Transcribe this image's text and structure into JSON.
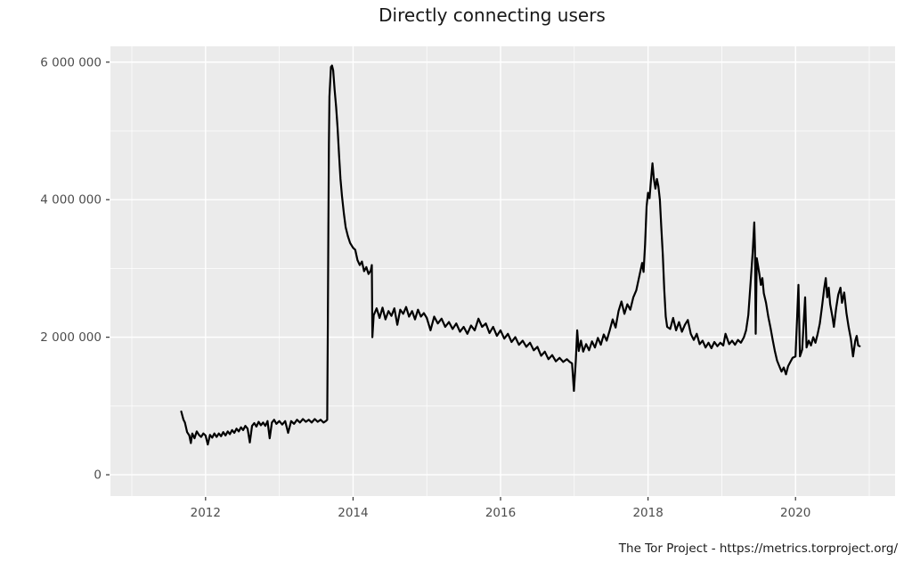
{
  "title": "Directly connecting users",
  "caption": "The Tor Project - https://metrics.torproject.org/",
  "chart_data": {
    "type": "line",
    "title": "Directly connecting users",
    "xlabel": "",
    "ylabel": "",
    "caption": "The Tor Project - https://metrics.torproject.org/",
    "legend": "none",
    "grid": "on",
    "style": {
      "panel_background": "#EBEBEB",
      "grid_color": "#FFFFFF",
      "line_color": "#000000",
      "line_width": 2.2,
      "tick_label_color": "#4D4D4D",
      "tick_mark_color": "#333333",
      "title_color": "#181818",
      "caption_color": "#1A1A1A"
    },
    "x_axis": {
      "range_years": [
        2010.71,
        2021.35
      ],
      "major_ticks": [
        {
          "value": 2012,
          "label": "2012"
        },
        {
          "value": 2014,
          "label": "2014"
        },
        {
          "value": 2016,
          "label": "2016"
        },
        {
          "value": 2018,
          "label": "2018"
        },
        {
          "value": 2020,
          "label": "2020"
        }
      ],
      "minor_ticks": [
        2011,
        2013,
        2015,
        2017,
        2019,
        2021
      ]
    },
    "y_axis": {
      "range_users": [
        -310000,
        6230000
      ],
      "major_ticks": [
        {
          "value": 0,
          "label": "0"
        },
        {
          "value": 2000000,
          "label": "2 000 000"
        },
        {
          "value": 4000000,
          "label": "4 000 000"
        },
        {
          "value": 6000000,
          "label": "6 000 000"
        }
      ],
      "minor_ticks": [
        1000000,
        3000000,
        5000000
      ]
    },
    "series": [
      {
        "name": "directly-connecting-users",
        "color": "#000000",
        "points_year_users_millions": [
          [
            2011.67,
            0.92
          ],
          [
            2011.7,
            0.8
          ],
          [
            2011.72,
            0.76
          ],
          [
            2011.75,
            0.62
          ],
          [
            2011.78,
            0.57
          ],
          [
            2011.8,
            0.46
          ],
          [
            2011.82,
            0.6
          ],
          [
            2011.85,
            0.53
          ],
          [
            2011.88,
            0.63
          ],
          [
            2011.91,
            0.58
          ],
          [
            2011.94,
            0.55
          ],
          [
            2011.97,
            0.6
          ],
          [
            2012.0,
            0.57
          ],
          [
            2012.03,
            0.44
          ],
          [
            2012.06,
            0.58
          ],
          [
            2012.09,
            0.54
          ],
          [
            2012.12,
            0.6
          ],
          [
            2012.15,
            0.55
          ],
          [
            2012.18,
            0.6
          ],
          [
            2012.21,
            0.56
          ],
          [
            2012.24,
            0.62
          ],
          [
            2012.27,
            0.57
          ],
          [
            2012.3,
            0.63
          ],
          [
            2012.33,
            0.59
          ],
          [
            2012.36,
            0.65
          ],
          [
            2012.39,
            0.61
          ],
          [
            2012.42,
            0.67
          ],
          [
            2012.45,
            0.63
          ],
          [
            2012.48,
            0.69
          ],
          [
            2012.51,
            0.65
          ],
          [
            2012.54,
            0.71
          ],
          [
            2012.57,
            0.67
          ],
          [
            2012.6,
            0.47
          ],
          [
            2012.63,
            0.71
          ],
          [
            2012.66,
            0.75
          ],
          [
            2012.69,
            0.7
          ],
          [
            2012.72,
            0.77
          ],
          [
            2012.75,
            0.72
          ],
          [
            2012.78,
            0.76
          ],
          [
            2012.81,
            0.71
          ],
          [
            2012.84,
            0.78
          ],
          [
            2012.87,
            0.53
          ],
          [
            2012.9,
            0.76
          ],
          [
            2012.93,
            0.8
          ],
          [
            2012.96,
            0.74
          ],
          [
            2013.0,
            0.78
          ],
          [
            2013.04,
            0.73
          ],
          [
            2013.08,
            0.78
          ],
          [
            2013.12,
            0.61
          ],
          [
            2013.16,
            0.78
          ],
          [
            2013.2,
            0.74
          ],
          [
            2013.24,
            0.8
          ],
          [
            2013.28,
            0.76
          ],
          [
            2013.32,
            0.81
          ],
          [
            2013.36,
            0.77
          ],
          [
            2013.4,
            0.8
          ],
          [
            2013.44,
            0.76
          ],
          [
            2013.48,
            0.81
          ],
          [
            2013.52,
            0.77
          ],
          [
            2013.56,
            0.8
          ],
          [
            2013.6,
            0.76
          ],
          [
            2013.63,
            0.78
          ],
          [
            2013.65,
            0.8
          ],
          [
            2013.658,
            2.2
          ],
          [
            2013.665,
            3.6
          ],
          [
            2013.672,
            4.8
          ],
          [
            2013.68,
            5.5
          ],
          [
            2013.7,
            5.93
          ],
          [
            2013.715,
            5.95
          ],
          [
            2013.73,
            5.88
          ],
          [
            2013.75,
            5.6
          ],
          [
            2013.77,
            5.35
          ],
          [
            2013.79,
            5.05
          ],
          [
            2013.81,
            4.65
          ],
          [
            2013.83,
            4.3
          ],
          [
            2013.85,
            4.05
          ],
          [
            2013.875,
            3.8
          ],
          [
            2013.9,
            3.6
          ],
          [
            2013.93,
            3.47
          ],
          [
            2013.96,
            3.37
          ],
          [
            2014.0,
            3.3
          ],
          [
            2014.03,
            3.27
          ],
          [
            2014.06,
            3.12
          ],
          [
            2014.09,
            3.05
          ],
          [
            2014.12,
            3.1
          ],
          [
            2014.15,
            2.96
          ],
          [
            2014.18,
            3.02
          ],
          [
            2014.21,
            2.92
          ],
          [
            2014.24,
            2.97
          ],
          [
            2014.255,
            3.05
          ],
          [
            2014.262,
            2.0
          ],
          [
            2014.28,
            2.32
          ],
          [
            2014.32,
            2.42
          ],
          [
            2014.36,
            2.28
          ],
          [
            2014.4,
            2.43
          ],
          [
            2014.44,
            2.26
          ],
          [
            2014.48,
            2.38
          ],
          [
            2014.52,
            2.31
          ],
          [
            2014.56,
            2.42
          ],
          [
            2014.6,
            2.18
          ],
          [
            2014.64,
            2.4
          ],
          [
            2014.68,
            2.34
          ],
          [
            2014.72,
            2.44
          ],
          [
            2014.76,
            2.3
          ],
          [
            2014.8,
            2.38
          ],
          [
            2014.84,
            2.26
          ],
          [
            2014.88,
            2.4
          ],
          [
            2014.92,
            2.3
          ],
          [
            2014.96,
            2.35
          ],
          [
            2015.0,
            2.28
          ],
          [
            2015.05,
            2.1
          ],
          [
            2015.1,
            2.3
          ],
          [
            2015.15,
            2.2
          ],
          [
            2015.2,
            2.27
          ],
          [
            2015.25,
            2.15
          ],
          [
            2015.3,
            2.22
          ],
          [
            2015.35,
            2.12
          ],
          [
            2015.4,
            2.2
          ],
          [
            2015.45,
            2.08
          ],
          [
            2015.5,
            2.15
          ],
          [
            2015.55,
            2.05
          ],
          [
            2015.6,
            2.17
          ],
          [
            2015.65,
            2.1
          ],
          [
            2015.7,
            2.27
          ],
          [
            2015.75,
            2.15
          ],
          [
            2015.8,
            2.2
          ],
          [
            2015.85,
            2.06
          ],
          [
            2015.9,
            2.15
          ],
          [
            2015.95,
            2.02
          ],
          [
            2016.0,
            2.1
          ],
          [
            2016.05,
            1.98
          ],
          [
            2016.1,
            2.05
          ],
          [
            2016.15,
            1.93
          ],
          [
            2016.2,
            2.0
          ],
          [
            2016.25,
            1.89
          ],
          [
            2016.3,
            1.95
          ],
          [
            2016.35,
            1.86
          ],
          [
            2016.4,
            1.92
          ],
          [
            2016.45,
            1.81
          ],
          [
            2016.5,
            1.86
          ],
          [
            2016.55,
            1.73
          ],
          [
            2016.6,
            1.79
          ],
          [
            2016.65,
            1.68
          ],
          [
            2016.7,
            1.74
          ],
          [
            2016.75,
            1.65
          ],
          [
            2016.8,
            1.7
          ],
          [
            2016.85,
            1.64
          ],
          [
            2016.9,
            1.68
          ],
          [
            2016.94,
            1.64
          ],
          [
            2016.97,
            1.62
          ],
          [
            2016.995,
            1.22
          ],
          [
            2017.02,
            1.66
          ],
          [
            2017.04,
            2.1
          ],
          [
            2017.06,
            1.8
          ],
          [
            2017.09,
            1.95
          ],
          [
            2017.12,
            1.79
          ],
          [
            2017.16,
            1.9
          ],
          [
            2017.2,
            1.81
          ],
          [
            2017.24,
            1.94
          ],
          [
            2017.28,
            1.85
          ],
          [
            2017.32,
            1.99
          ],
          [
            2017.36,
            1.89
          ],
          [
            2017.4,
            2.04
          ],
          [
            2017.44,
            1.95
          ],
          [
            2017.48,
            2.1
          ],
          [
            2017.52,
            2.26
          ],
          [
            2017.56,
            2.14
          ],
          [
            2017.6,
            2.38
          ],
          [
            2017.64,
            2.52
          ],
          [
            2017.68,
            2.34
          ],
          [
            2017.72,
            2.48
          ],
          [
            2017.76,
            2.4
          ],
          [
            2017.8,
            2.58
          ],
          [
            2017.84,
            2.68
          ],
          [
            2017.88,
            2.88
          ],
          [
            2017.92,
            3.08
          ],
          [
            2017.94,
            2.95
          ],
          [
            2017.96,
            3.35
          ],
          [
            2017.98,
            3.9
          ],
          [
            2018.0,
            4.1
          ],
          [
            2018.02,
            4.02
          ],
          [
            2018.04,
            4.28
          ],
          [
            2018.06,
            4.53
          ],
          [
            2018.08,
            4.3
          ],
          [
            2018.1,
            4.16
          ],
          [
            2018.12,
            4.3
          ],
          [
            2018.14,
            4.2
          ],
          [
            2018.16,
            4.0
          ],
          [
            2018.18,
            3.6
          ],
          [
            2018.2,
            3.2
          ],
          [
            2018.22,
            2.7
          ],
          [
            2018.24,
            2.3
          ],
          [
            2018.26,
            2.15
          ],
          [
            2018.3,
            2.12
          ],
          [
            2018.34,
            2.28
          ],
          [
            2018.38,
            2.1
          ],
          [
            2018.42,
            2.22
          ],
          [
            2018.46,
            2.08
          ],
          [
            2018.5,
            2.18
          ],
          [
            2018.54,
            2.25
          ],
          [
            2018.58,
            2.05
          ],
          [
            2018.62,
            1.96
          ],
          [
            2018.66,
            2.05
          ],
          [
            2018.7,
            1.9
          ],
          [
            2018.74,
            1.95
          ],
          [
            2018.78,
            1.85
          ],
          [
            2018.82,
            1.92
          ],
          [
            2018.86,
            1.84
          ],
          [
            2018.9,
            1.93
          ],
          [
            2018.94,
            1.87
          ],
          [
            2018.98,
            1.92
          ],
          [
            2019.02,
            1.88
          ],
          [
            2019.05,
            2.05
          ],
          [
            2019.1,
            1.9
          ],
          [
            2019.14,
            1.95
          ],
          [
            2019.18,
            1.89
          ],
          [
            2019.22,
            1.96
          ],
          [
            2019.26,
            1.92
          ],
          [
            2019.3,
            2.0
          ],
          [
            2019.33,
            2.1
          ],
          [
            2019.36,
            2.32
          ],
          [
            2019.39,
            2.78
          ],
          [
            2019.42,
            3.25
          ],
          [
            2019.44,
            3.67
          ],
          [
            2019.45,
            3.3
          ],
          [
            2019.46,
            2.05
          ],
          [
            2019.475,
            3.15
          ],
          [
            2019.49,
            3.05
          ],
          [
            2019.51,
            2.92
          ],
          [
            2019.53,
            2.76
          ],
          [
            2019.55,
            2.86
          ],
          [
            2019.57,
            2.64
          ],
          [
            2019.6,
            2.5
          ],
          [
            2019.63,
            2.3
          ],
          [
            2019.66,
            2.14
          ],
          [
            2019.69,
            1.96
          ],
          [
            2019.72,
            1.8
          ],
          [
            2019.75,
            1.66
          ],
          [
            2019.78,
            1.58
          ],
          [
            2019.81,
            1.5
          ],
          [
            2019.84,
            1.56
          ],
          [
            2019.87,
            1.46
          ],
          [
            2019.9,
            1.58
          ],
          [
            2019.93,
            1.64
          ],
          [
            2019.96,
            1.7
          ],
          [
            2020.0,
            1.72
          ],
          [
            2020.04,
            2.76
          ],
          [
            2020.06,
            1.72
          ],
          [
            2020.09,
            1.82
          ],
          [
            2020.13,
            2.58
          ],
          [
            2020.15,
            1.85
          ],
          [
            2020.18,
            1.95
          ],
          [
            2020.21,
            1.88
          ],
          [
            2020.24,
            2.0
          ],
          [
            2020.27,
            1.92
          ],
          [
            2020.3,
            2.05
          ],
          [
            2020.33,
            2.2
          ],
          [
            2020.36,
            2.45
          ],
          [
            2020.39,
            2.72
          ],
          [
            2020.41,
            2.86
          ],
          [
            2020.43,
            2.58
          ],
          [
            2020.45,
            2.72
          ],
          [
            2020.47,
            2.48
          ],
          [
            2020.5,
            2.3
          ],
          [
            2020.52,
            2.15
          ],
          [
            2020.55,
            2.42
          ],
          [
            2020.58,
            2.62
          ],
          [
            2020.61,
            2.72
          ],
          [
            2020.63,
            2.5
          ],
          [
            2020.66,
            2.65
          ],
          [
            2020.69,
            2.35
          ],
          [
            2020.72,
            2.15
          ],
          [
            2020.75,
            1.98
          ],
          [
            2020.78,
            1.72
          ],
          [
            2020.81,
            1.95
          ],
          [
            2020.83,
            2.02
          ],
          [
            2020.85,
            1.88
          ],
          [
            2020.87,
            1.87
          ]
        ]
      }
    ]
  }
}
